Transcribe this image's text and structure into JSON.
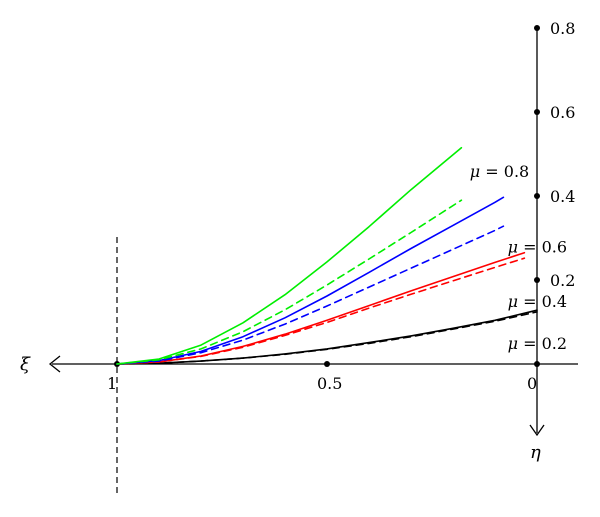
{
  "chart_data": {
    "type": "line",
    "x_axis": {
      "symbol": "ξ",
      "range": [
        0,
        1.0
      ],
      "direction": "increasing-leftward",
      "ticks": [
        {
          "value": 1,
          "label": "1"
        },
        {
          "value": 0.5,
          "label": "0.5"
        },
        {
          "value": 0,
          "label": "0"
        }
      ]
    },
    "y_axis": {
      "symbol": "η",
      "range": [
        0,
        0.8
      ],
      "ticks": [
        {
          "value": 0.2,
          "label": "0.2"
        },
        {
          "value": 0.4,
          "label": "0.4"
        },
        {
          "value": 0.6,
          "label": "0.6"
        },
        {
          "value": 0.8,
          "label": "0.8"
        }
      ]
    },
    "reference_line": {
      "x": 1,
      "style": "dashed"
    },
    "grid": false,
    "series": [
      {
        "name": "μ = 0.2",
        "mu": "0.2",
        "color": "#000000",
        "style": "solid",
        "x": [
          1.0,
          0.9,
          0.8,
          0.7,
          0.6,
          0.5,
          0.4,
          0.3,
          0.2,
          0.1,
          0.0
        ],
        "y": [
          0.0,
          0.002,
          0.007,
          0.014,
          0.024,
          0.036,
          0.051,
          0.067,
          0.085,
          0.104,
          0.128
        ]
      },
      {
        "name": "",
        "mu": "0.2",
        "color": "#000000",
        "style": "dashed",
        "x": [
          1.0,
          0.9,
          0.8,
          0.7,
          0.6,
          0.5,
          0.4,
          0.3,
          0.2,
          0.1,
          0.0
        ],
        "y": [
          0.0,
          0.002,
          0.007,
          0.014,
          0.023,
          0.035,
          0.049,
          0.065,
          0.083,
          0.102,
          0.124
        ]
      },
      {
        "name": "μ = 0.4",
        "mu": "0.4",
        "color": "#ff0000",
        "style": "solid",
        "x": [
          1.0,
          0.9,
          0.8,
          0.7,
          0.6,
          0.5,
          0.4,
          0.3,
          0.2,
          0.1,
          0.03
        ],
        "y": [
          0.0,
          0.005,
          0.019,
          0.042,
          0.071,
          0.104,
          0.139,
          0.174,
          0.208,
          0.242,
          0.265
        ]
      },
      {
        "name": "",
        "mu": "0.4",
        "color": "#ff0000",
        "style": "dashed",
        "x": [
          1.0,
          0.9,
          0.8,
          0.7,
          0.6,
          0.5,
          0.4,
          0.3,
          0.2,
          0.1,
          0.03
        ],
        "y": [
          0.0,
          0.005,
          0.018,
          0.04,
          0.068,
          0.099,
          0.133,
          0.166,
          0.198,
          0.23,
          0.252
        ]
      },
      {
        "name": "μ = 0.6",
        "mu": "0.6",
        "color": "#0000ff",
        "style": "solid",
        "x": [
          1.0,
          0.9,
          0.8,
          0.7,
          0.6,
          0.5,
          0.4,
          0.3,
          0.2,
          0.1,
          0.08
        ],
        "y": [
          0.0,
          0.008,
          0.03,
          0.065,
          0.11,
          0.162,
          0.218,
          0.275,
          0.33,
          0.385,
          0.397
        ]
      },
      {
        "name": "",
        "mu": "0.6",
        "color": "#0000ff",
        "style": "dashed",
        "x": [
          1.0,
          0.9,
          0.8,
          0.7,
          0.6,
          0.5,
          0.4,
          0.3,
          0.2,
          0.1,
          0.08
        ],
        "y": [
          0.0,
          0.007,
          0.027,
          0.057,
          0.095,
          0.138,
          0.183,
          0.228,
          0.273,
          0.318,
          0.328
        ]
      },
      {
        "name": "μ = 0.8",
        "mu": "0.8",
        "color": "#00ee00",
        "style": "solid",
        "x": [
          1.0,
          0.9,
          0.8,
          0.7,
          0.6,
          0.5,
          0.4,
          0.3,
          0.18
        ],
        "y": [
          0.0,
          0.012,
          0.045,
          0.098,
          0.165,
          0.243,
          0.327,
          0.415,
          0.515
        ]
      },
      {
        "name": "",
        "mu": "0.8",
        "color": "#00ee00",
        "style": "dashed",
        "x": [
          1.0,
          0.9,
          0.8,
          0.7,
          0.6,
          0.5,
          0.4,
          0.3,
          0.18
        ],
        "y": [
          0.0,
          0.01,
          0.036,
          0.077,
          0.129,
          0.188,
          0.25,
          0.313,
          0.39
        ]
      }
    ],
    "annotations": [
      {
        "mu_value": "0.8",
        "symbol": "μ",
        "text": " = 0.8",
        "near": {
          "x": 0.16,
          "y": 0.46
        }
      },
      {
        "mu_value": "0.6",
        "symbol": "μ",
        "text": " = 0.6",
        "near": {
          "x": 0.07,
          "y": 0.28
        }
      },
      {
        "mu_value": "0.4",
        "symbol": "μ",
        "text": " = 0.4",
        "near": {
          "x": 0.07,
          "y": 0.15
        }
      },
      {
        "mu_value": "0.2",
        "symbol": "μ",
        "text": " = 0.2",
        "near": {
          "x": 0.07,
          "y": 0.05
        }
      }
    ]
  }
}
